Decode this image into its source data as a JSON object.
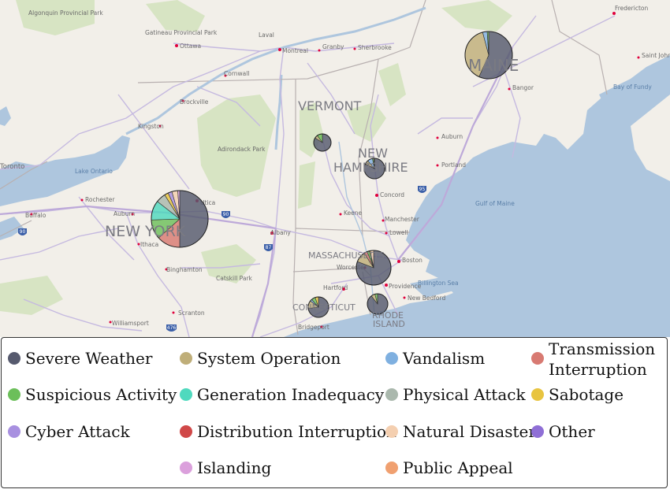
{
  "map": {
    "place_labels": [
      {
        "id": "algonquin",
        "text": "Algonquin Provincial Park"
      },
      {
        "id": "ottawa",
        "text": "Ottawa"
      },
      {
        "id": "gatineau",
        "text": "Gatineau Provincial Park"
      },
      {
        "id": "laval",
        "text": "Laval"
      },
      {
        "id": "montreal",
        "text": "Montreal"
      },
      {
        "id": "granby",
        "text": "Granby"
      },
      {
        "id": "sherbrooke",
        "text": "Sherbrooke"
      },
      {
        "id": "cornwall",
        "text": "Cornwall"
      },
      {
        "id": "brockville",
        "text": "Brockville"
      },
      {
        "id": "kingston",
        "text": "Kingston"
      },
      {
        "id": "adirondack",
        "text": "Adirondack Park"
      },
      {
        "id": "toronto",
        "text": "Toronto"
      },
      {
        "id": "lakeontario",
        "text": "Lake Ontario"
      },
      {
        "id": "rochester",
        "text": "Rochester"
      },
      {
        "id": "buffalo",
        "text": "Buffalo"
      },
      {
        "id": "auburn_ny",
        "text": "Auburn"
      },
      {
        "id": "utica",
        "text": "Utica"
      },
      {
        "id": "ithaca",
        "text": "Ithaca"
      },
      {
        "id": "albany",
        "text": "Albany"
      },
      {
        "id": "binghamton",
        "text": "Binghamton"
      },
      {
        "id": "catskill",
        "text": "Catskill Park"
      },
      {
        "id": "scranton",
        "text": "Scranton"
      },
      {
        "id": "williamsport",
        "text": "Williamsport"
      },
      {
        "id": "fredericton",
        "text": "Fredericton"
      },
      {
        "id": "saintjohn",
        "text": "Saint John"
      },
      {
        "id": "bangor",
        "text": "Bangor"
      },
      {
        "id": "bayoffundy",
        "text": "Bay of Fundy"
      },
      {
        "id": "auburn_me",
        "text": "Auburn"
      },
      {
        "id": "portland",
        "text": "Portland"
      },
      {
        "id": "gulfofmaine",
        "text": "Gulf of Maine"
      },
      {
        "id": "concord",
        "text": "Concord"
      },
      {
        "id": "keene",
        "text": "Keene"
      },
      {
        "id": "manchester",
        "text": "Manchester"
      },
      {
        "id": "lowell",
        "text": "Lowell"
      },
      {
        "id": "boston",
        "text": "Boston"
      },
      {
        "id": "worcester",
        "text": "Worcester"
      },
      {
        "id": "providence",
        "text": "Providence"
      },
      {
        "id": "newbedford",
        "text": "New Bedford"
      },
      {
        "id": "billingsea",
        "text": "Billington Sea"
      },
      {
        "id": "hartford",
        "text": "Hartford"
      },
      {
        "id": "bridgeport",
        "text": "Bridgeport"
      }
    ],
    "highway_shields": [
      "90",
      "87",
      "95",
      "90",
      "476"
    ],
    "states": {
      "maine": "MAINE",
      "vermont": "VERMONT",
      "nh1": "NEW",
      "nh2": "HAMPSHIRE",
      "newyork": "NEW YORK",
      "mass": "MASSACHUSETTS",
      "ct": "CONNECTICUT",
      "ri1": "RHODE",
      "ri2": "ISLAND"
    },
    "colors": {
      "water": "#aec6de",
      "land": "#f2efe9",
      "park": "#d7e4c3",
      "road": "#c5b9e0",
      "road_major": "#bda9d9",
      "border": "#b8b0b0",
      "text": "#6a6a6a"
    }
  },
  "legend": {
    "items": [
      {
        "label": "Severe Weather",
        "color": "#565a6e"
      },
      {
        "label": "System Operation",
        "color": "#bfae79"
      },
      {
        "label": "Vandalism",
        "color": "#7fb0e0"
      },
      {
        "label": "Transmission",
        "label2": "Interruption",
        "color": "#d87a72"
      },
      {
        "label": "Suspicious Activity",
        "color": "#6cbf5a"
      },
      {
        "label": "Generation Inadequacy",
        "color": "#4fd9be"
      },
      {
        "label": "Physical Attack",
        "color": "#aab8ad"
      },
      {
        "label": "Sabotage",
        "color": "#e8c440"
      },
      {
        "label": "Cyber Attack",
        "color": "#a890e0"
      },
      {
        "label": "Distribution Interruption",
        "color": "#d04848"
      },
      {
        "label": "Natural Disaster",
        "color": "#f4cfb0"
      },
      {
        "label": "Other",
        "color": "#8f6fd6"
      },
      {
        "label": "Islanding",
        "color": "#dba0dc"
      },
      {
        "label": "Public Appeal",
        "color": "#f0a070"
      }
    ]
  },
  "chart_data": {
    "type": "pie",
    "categories": [
      "Severe Weather",
      "System Operation",
      "Vandalism",
      "Transmission Interruption",
      "Suspicious Activity",
      "Generation Inadequacy",
      "Physical Attack",
      "Sabotage",
      "Cyber Attack",
      "Distribution Interruption",
      "Natural Disaster",
      "Other",
      "Islanding",
      "Public Appeal"
    ],
    "pies": [
      {
        "state": "New York",
        "size": 36,
        "values": [
          45,
          0,
          0,
          12,
          10,
          10,
          5,
          2,
          2,
          0,
          3,
          0,
          1,
          0
        ]
      },
      {
        "state": "Maine",
        "size": 30,
        "values": [
          55,
          38,
          3,
          0,
          1,
          0,
          0,
          0,
          0,
          0,
          0,
          0,
          0,
          0
        ]
      },
      {
        "state": "Massachusetts",
        "size": 22,
        "values": [
          80,
          10,
          0,
          3,
          2,
          0,
          0,
          1,
          0,
          0,
          3,
          0,
          0,
          0
        ]
      },
      {
        "state": "New Hampshire",
        "size": 13,
        "values": [
          80,
          6,
          8,
          0,
          2,
          0,
          0,
          1,
          0,
          0,
          0,
          0,
          0,
          0
        ]
      },
      {
        "state": "Connecticut",
        "size": 13,
        "values": [
          70,
          12,
          3,
          0,
          6,
          0,
          0,
          5,
          0,
          0,
          0,
          0,
          0,
          0
        ]
      },
      {
        "state": "Rhode Island",
        "size": 13,
        "values": [
          86,
          6,
          0,
          0,
          4,
          0,
          0,
          0,
          0,
          0,
          0,
          0,
          0,
          0
        ]
      },
      {
        "state": "Vermont",
        "size": 11,
        "values": [
          84,
          6,
          0,
          0,
          10,
          0,
          0,
          0,
          0,
          0,
          0,
          0,
          0,
          0
        ]
      }
    ]
  }
}
